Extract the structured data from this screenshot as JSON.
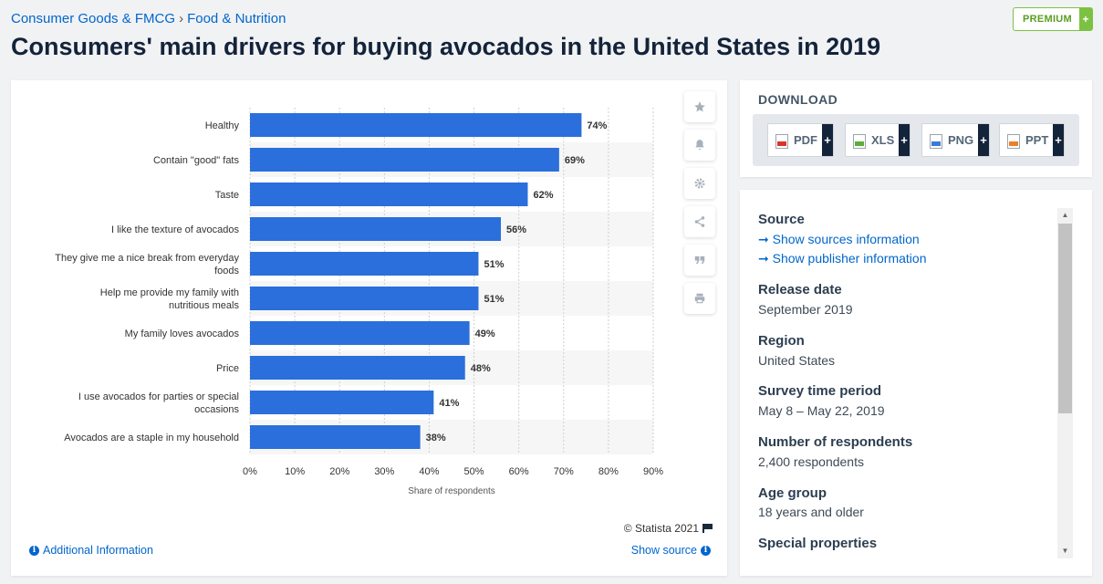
{
  "breadcrumb": {
    "first": "Consumer Goods & FMCG",
    "separator": "›",
    "second": "Food & Nutrition"
  },
  "premium": {
    "label": "PREMIUM",
    "plus": "+"
  },
  "title": "Consumers' main drivers for buying avocados in the United States in 2019",
  "chart_data": {
    "type": "bar",
    "orientation": "horizontal",
    "categories": [
      [
        "Healthy"
      ],
      [
        "Contain \"good\" fats"
      ],
      [
        "Taste"
      ],
      [
        "I like the texture of avocados"
      ],
      [
        "They give me a nice break from everyday",
        "foods"
      ],
      [
        "Help me provide my family with",
        "nutritious meals"
      ],
      [
        "My family loves avocados"
      ],
      [
        "Price"
      ],
      [
        "I use avocados for parties or special",
        "occasions"
      ],
      [
        "Avocados are a staple in my household"
      ]
    ],
    "values": [
      74,
      69,
      62,
      56,
      51,
      51,
      49,
      48,
      41,
      38
    ],
    "value_suffix": "%",
    "xlim": [
      0,
      90
    ],
    "xticks": [
      0,
      10,
      20,
      30,
      40,
      50,
      60,
      70,
      80,
      90
    ],
    "tick_suffix": "%",
    "xlabel": "Share of respondents",
    "bar_color": "#2a6fdb",
    "grid": true
  },
  "chart_footer": {
    "copyright": "© Statista 2021",
    "additional_info": "Additional Information",
    "show_source": "Show source"
  },
  "download": {
    "title": "DOWNLOAD",
    "buttons": [
      {
        "label": "PDF",
        "color": "#d9342b"
      },
      {
        "label": "XLS",
        "color": "#5cae3a"
      },
      {
        "label": "PNG",
        "color": "#3a7bd5"
      },
      {
        "label": "PPT",
        "color": "#e8822a"
      }
    ],
    "plus": "+"
  },
  "info": {
    "source_heading": "Source",
    "source_link_1": "➞ Show sources information",
    "source_link_2": "➞ Show publisher information",
    "sections": [
      {
        "heading": "Release date",
        "value": "September 2019"
      },
      {
        "heading": "Region",
        "value": "United States"
      },
      {
        "heading": "Survey time period",
        "value": "May 8 – May 22, 2019"
      },
      {
        "heading": "Number of respondents",
        "value": "2,400 respondents"
      },
      {
        "heading": "Age group",
        "value": "18 years and older"
      },
      {
        "heading": "Special properties",
        "value": ""
      }
    ]
  }
}
